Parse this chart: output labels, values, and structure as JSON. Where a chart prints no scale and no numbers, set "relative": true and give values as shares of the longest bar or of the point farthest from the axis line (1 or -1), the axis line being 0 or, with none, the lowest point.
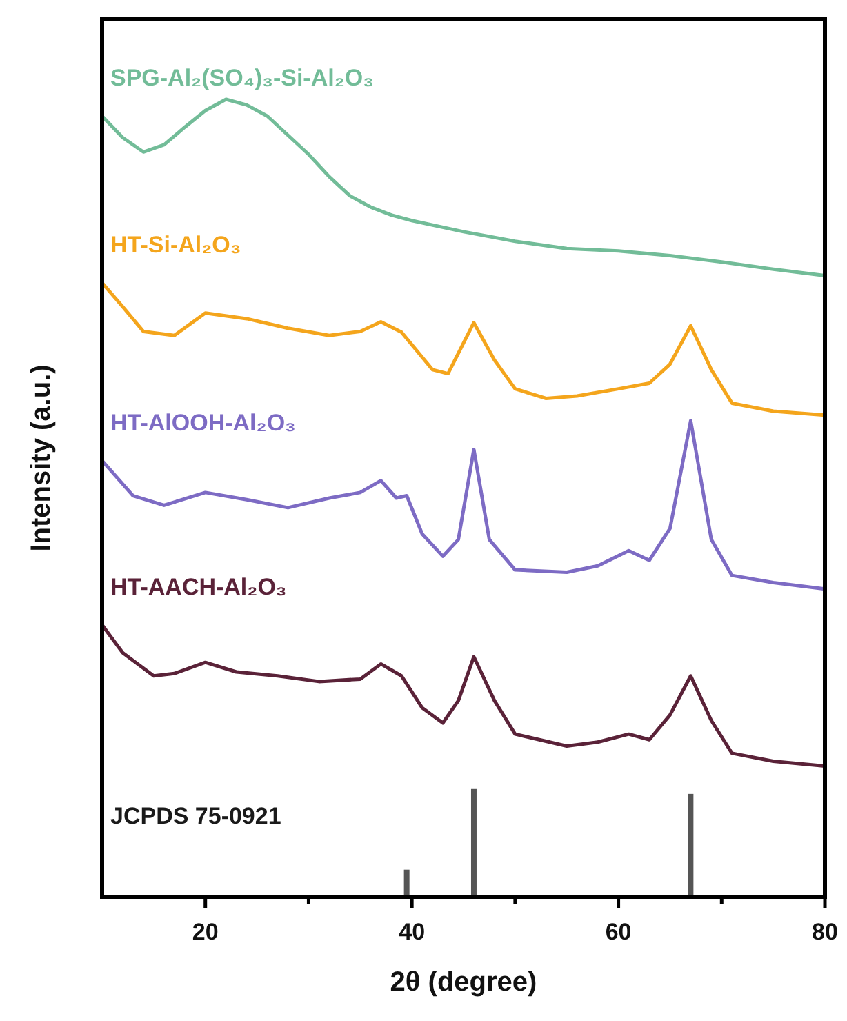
{
  "chart_data": {
    "type": "line",
    "relative": true,
    "xlabel": "2θ (degree)",
    "ylabel": "Intensity (a.u.)",
    "xlim": [
      10,
      80
    ],
    "xticks": [
      20,
      {
        "value": 30,
        "label": null
      },
      40,
      {
        "value": 50,
        "label": null
      },
      60,
      {
        "value": 70,
        "label": null
      },
      80
    ],
    "line_style": "solid",
    "annotations": [
      "JCPDS 75-0921"
    ],
    "series": [
      {
        "name": "SPG-Al₂(SO₄)₃-Si-Al₂O₃",
        "color": "#72bc98",
        "x": [
          10,
          12,
          14,
          16,
          18,
          20,
          22,
          24,
          26,
          28,
          30,
          32,
          34,
          36,
          38,
          40,
          45,
          50,
          55,
          60,
          65,
          70,
          75,
          80
        ],
        "values": [
          0.979,
          0.952,
          0.934,
          0.943,
          0.965,
          0.986,
          1.0,
          0.993,
          0.979,
          0.955,
          0.931,
          0.903,
          0.879,
          0.865,
          0.855,
          0.848,
          0.834,
          0.822,
          0.813,
          0.81,
          0.804,
          0.796,
          0.787,
          0.779
        ]
      },
      {
        "name": "HT-Si-Al₂O₃",
        "color": "#f4a51c",
        "x": [
          10,
          12,
          14,
          17,
          20,
          24,
          28,
          32,
          35,
          37,
          39,
          42,
          43.5,
          46,
          48,
          50,
          53,
          56,
          60,
          63,
          65,
          67,
          69,
          71,
          75,
          80
        ],
        "values": [
          0.77,
          0.74,
          0.709,
          0.704,
          0.732,
          0.725,
          0.713,
          0.704,
          0.709,
          0.721,
          0.708,
          0.661,
          0.656,
          0.72,
          0.673,
          0.637,
          0.625,
          0.628,
          0.637,
          0.644,
          0.668,
          0.716,
          0.661,
          0.619,
          0.609,
          0.604
        ]
      },
      {
        "name": "HT-AlOOH-Al₂O₃",
        "color": "#7d6bc4",
        "x": [
          10,
          13,
          16,
          20,
          24,
          28,
          32,
          35,
          37,
          38.5,
          39.5,
          41,
          43,
          44.5,
          46,
          47.5,
          50,
          55,
          58,
          61,
          63,
          65,
          67,
          69,
          71,
          75,
          80
        ],
        "values": [
          0.547,
          0.503,
          0.491,
          0.507,
          0.498,
          0.488,
          0.5,
          0.507,
          0.522,
          0.5,
          0.503,
          0.455,
          0.427,
          0.448,
          0.561,
          0.448,
          0.41,
          0.407,
          0.415,
          0.434,
          0.422,
          0.462,
          0.597,
          0.448,
          0.403,
          0.394,
          0.386
        ]
      },
      {
        "name": "HT-AACH-Al₂O₃",
        "color": "#5a2238",
        "x": [
          10,
          12,
          15,
          17,
          20,
          23,
          27,
          31,
          35,
          37,
          39,
          41,
          43,
          44.5,
          46,
          48,
          50,
          55,
          58,
          61,
          63,
          65,
          67,
          69,
          71,
          75,
          80
        ],
        "values": [
          0.341,
          0.306,
          0.277,
          0.28,
          0.294,
          0.282,
          0.277,
          0.27,
          0.273,
          0.292,
          0.277,
          0.237,
          0.218,
          0.246,
          0.301,
          0.246,
          0.204,
          0.189,
          0.194,
          0.204,
          0.197,
          0.228,
          0.277,
          0.221,
          0.18,
          0.17,
          0.164
        ]
      },
      {
        "type": "bar",
        "color": "#555555",
        "x": [
          39.5,
          46,
          67
        ],
        "values": [
          0.034,
          0.136,
          0.129
        ]
      }
    ]
  }
}
